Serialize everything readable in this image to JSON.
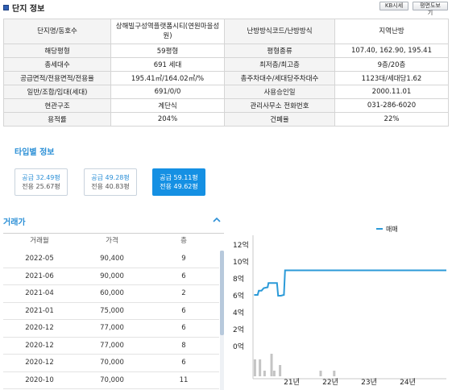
{
  "header": {
    "title": "단지 정보",
    "kb_button": "KB시세",
    "floorplan_button": "평면도보기",
    "accent_color": "#2f5fb3"
  },
  "info_rows": [
    [
      "단지명/동호수",
      "상해빌구성역플랫폼시티(연원마을성원)",
      "난방방식코드/난방방식",
      "지역난방"
    ],
    [
      "해당평형",
      "59평형",
      "평형종류",
      "107.40, 162.90, 195.41"
    ],
    [
      "총세대수",
      "691 세대",
      "최저층/최고층",
      "9층/20층"
    ],
    [
      "공급면적/전용면적/전용율",
      "195.41㎡/164.02㎡/%",
      "총주차대수/세대당주차대수",
      "1123대/세대당1.62"
    ],
    [
      "일반/조합/임대(세대)",
      "691/0/0",
      "사용승인일",
      "2000.11.01"
    ],
    [
      "현관구조",
      "계단식",
      "관리사무소 전화번호",
      "031-286-6020"
    ],
    [
      "용적률",
      "204%",
      "건폐율",
      "22%"
    ]
  ],
  "type_info": {
    "title": "타입별 정보",
    "cards": [
      {
        "supply": "공급 32.49평",
        "exclusive": "전용 25.67평",
        "active": false
      },
      {
        "supply": "공급 49.28평",
        "exclusive": "전용 40.83평",
        "active": false
      },
      {
        "supply": "공급 59.11평",
        "exclusive": "전용 49.62평",
        "active": true
      }
    ],
    "active_color": "#1590e3"
  },
  "trades": {
    "title": "거래가",
    "columns": [
      "거래월",
      "가격",
      "층"
    ],
    "rows": [
      [
        "2022-05",
        "90,400",
        "9"
      ],
      [
        "2021-06",
        "90,000",
        "6"
      ],
      [
        "2021-04",
        "60,000",
        "2"
      ],
      [
        "2021-01",
        "75,000",
        "6"
      ],
      [
        "2020-12",
        "77,000",
        "6"
      ],
      [
        "2020-12",
        "77,000",
        "8"
      ],
      [
        "2020-12",
        "70,000",
        "6"
      ],
      [
        "2020-10",
        "70,000",
        "11"
      ]
    ]
  },
  "chart_data": {
    "type": "line",
    "legend": [
      "매매"
    ],
    "legend_position": "top-right",
    "y_tick_labels": [
      "12억",
      "10억",
      "8억",
      "6억",
      "4억",
      "2억",
      "0억"
    ],
    "y_range": [
      0,
      12
    ],
    "x_tick_labels": [
      "21년",
      "22년",
      "23년",
      "24년"
    ],
    "x_range": [
      2020.0,
      2025.0
    ],
    "grid": false,
    "line_color": "#2b9ad8",
    "series": [
      {
        "name": "매매",
        "x": [
          2020.03,
          2020.12,
          2020.15,
          2020.22,
          2020.28,
          2020.38,
          2020.4,
          2020.62,
          2020.65,
          2020.72,
          2020.8,
          2020.83,
          2020.87,
          2021.5,
          2022.0,
          2023.0,
          2024.0,
          2025.0
        ],
        "y": [
          6.1,
          6.1,
          6.6,
          6.6,
          6.9,
          7.0,
          7.5,
          7.5,
          6.0,
          6.0,
          6.1,
          9.0,
          9.0,
          9.0,
          9.0,
          9.0,
          9.0,
          9.0
        ]
      }
    ],
    "volume_bars": {
      "x": [
        2020.05,
        2020.18,
        2020.3,
        2020.48,
        2020.55,
        2020.7,
        2021.75,
        2022.1
      ],
      "values": [
        3,
        3,
        1,
        4,
        1,
        2,
        1,
        1
      ]
    }
  }
}
